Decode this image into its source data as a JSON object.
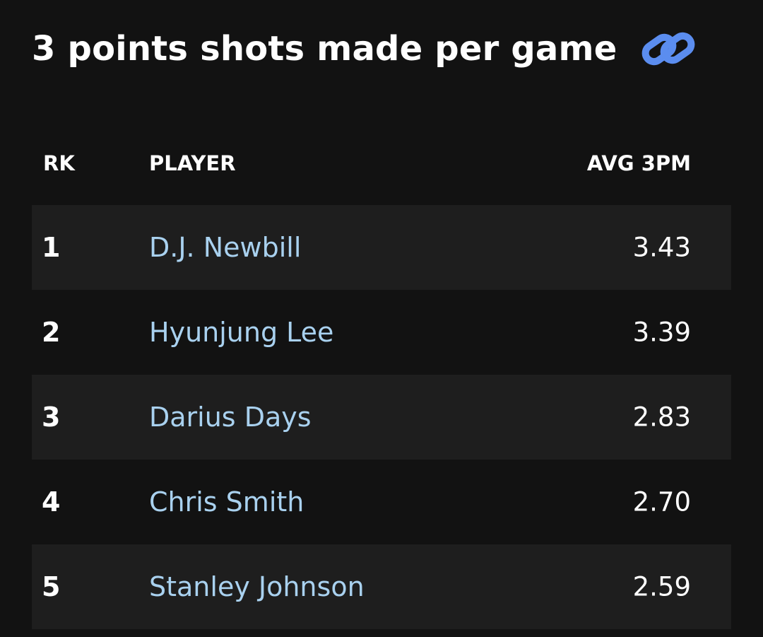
{
  "header": {
    "title": "3 points shots made per game",
    "icon": "link-icon",
    "icon_color": "#5b8def"
  },
  "table": {
    "columns": {
      "rank": "RK",
      "player": "PLAYER",
      "avg": "AVG 3PM"
    },
    "rows": [
      {
        "rank": "1",
        "player": "D.J. Newbill",
        "avg": "3.43"
      },
      {
        "rank": "2",
        "player": "Hyunjung Lee",
        "avg": "3.39"
      },
      {
        "rank": "3",
        "player": "Darius Days",
        "avg": "2.83"
      },
      {
        "rank": "4",
        "player": "Chris Smith",
        "avg": "2.70"
      },
      {
        "rank": "5",
        "player": "Stanley Johnson",
        "avg": "2.59"
      }
    ]
  },
  "colors": {
    "background": "#121212",
    "row_shade": "#1e1e1e",
    "player_link": "#a9d1ef"
  }
}
